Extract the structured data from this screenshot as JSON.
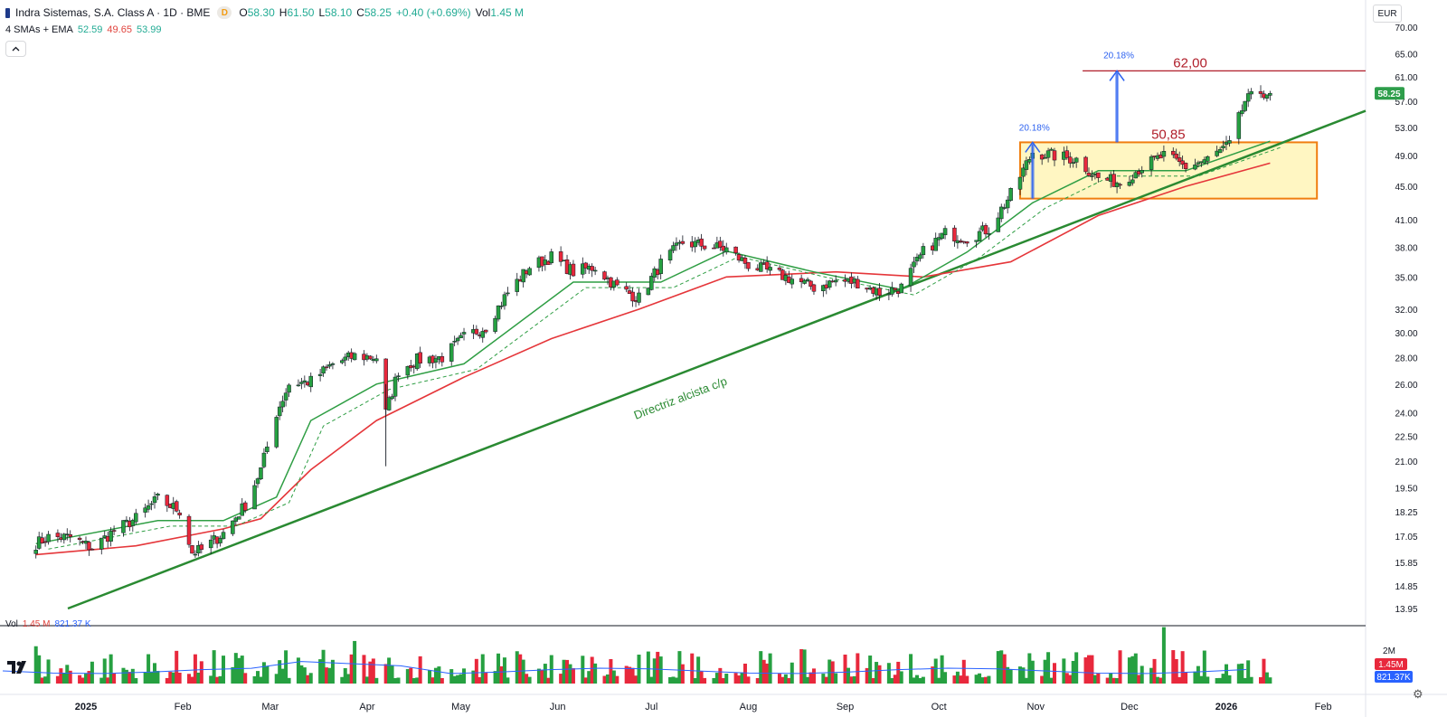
{
  "header": {
    "title": "Indra Sistemas, S.A. Class A · 1D · BME",
    "badge": "D",
    "ohlc": {
      "o_label": "O",
      "o": "58.30",
      "h_label": "H",
      "h": "61.50",
      "l_label": "L",
      "l": "58.10",
      "c_label": "C",
      "c": "58.25",
      "change": "+0.40 (+0.69%)",
      "vol_label": "Vol",
      "vol": "1.45 M"
    }
  },
  "indicators": {
    "label": "4 SMAs + EMA",
    "v1": "52.59",
    "v2": "49.65",
    "v3": "53.99"
  },
  "collapse_icon": "chevron-up-icon",
  "currency": "EUR",
  "price_scale": [
    "70.00",
    "65.00",
    "61.00",
    "57.00",
    "53.00",
    "49.00",
    "45.00",
    "41.00",
    "38.00",
    "35.00",
    "32.00",
    "30.00",
    "28.00",
    "26.00",
    "24.00",
    "22.50",
    "21.00",
    "19.50",
    "18.25",
    "17.05",
    "15.85",
    "14.85",
    "13.95"
  ],
  "last_price": "58.25",
  "time_axis": [
    "2025",
    "Feb",
    "Mar",
    "Apr",
    "May",
    "Jun",
    "Jul",
    "Aug",
    "Sep",
    "Oct",
    "Nov",
    "Dec",
    "2026",
    "Feb"
  ],
  "annotations": {
    "resistance": "62,00",
    "box_top": "50,85",
    "pct1": "20.18%",
    "pct2": "20.18%",
    "trendline": "Directriz alcista c/p"
  },
  "volume": {
    "label": "Vol",
    "v1": "1.45 M",
    "v2": "821.37 K",
    "scale": "2M",
    "badge1": "1.45M",
    "badge2": "821.37K"
  },
  "colors": {
    "up": "#26a041",
    "down": "#e8283c",
    "sma_red": "#e5363a",
    "sma_green": "#2f9e44",
    "trend": "#2a8a32",
    "box_fill": "#fff6c2",
    "box_border": "#f07e10",
    "resistance": "#b01e2a",
    "arrow": "#2d62f0"
  },
  "chart_data": {
    "type": "candlestick",
    "symbol": "Indra Sistemas, S.A. Class A",
    "interval": "1D",
    "scale": "log",
    "ylim": [
      13.95,
      70.0
    ],
    "series": [
      {
        "name": "price",
        "points": [
          [
            "2024-12-16",
            16.7
          ],
          [
            "2024-12-20",
            17.0
          ],
          [
            "2024-12-27",
            17.0
          ],
          [
            "2025-01-03",
            16.5
          ],
          [
            "2025-01-10",
            17.3
          ],
          [
            "2025-01-17",
            17.9
          ],
          [
            "2025-01-24",
            18.9
          ],
          [
            "2025-01-31",
            18.3
          ],
          [
            "2025-02-04",
            16.3
          ],
          [
            "2025-02-07",
            16.4
          ],
          [
            "2025-02-14",
            17.2
          ],
          [
            "2025-02-21",
            18.6
          ],
          [
            "2025-02-26",
            20.5
          ],
          [
            "2025-03-03",
            24.0
          ],
          [
            "2025-03-07",
            26.0
          ],
          [
            "2025-03-14",
            26.2
          ],
          [
            "2025-03-21",
            27.5
          ],
          [
            "2025-03-28",
            28.1
          ],
          [
            "2025-04-04",
            28.0
          ],
          [
            "2025-04-07",
            24.0
          ],
          [
            "2025-04-11",
            27.0
          ],
          [
            "2025-04-17",
            27.8
          ],
          [
            "2025-04-25",
            28.0
          ],
          [
            "2025-05-02",
            29.6
          ],
          [
            "2025-05-09",
            30.5
          ],
          [
            "2025-05-16",
            33.5
          ],
          [
            "2025-05-23",
            36.0
          ],
          [
            "2025-05-30",
            37.0
          ],
          [
            "2025-06-06",
            35.5
          ],
          [
            "2025-06-13",
            36.0
          ],
          [
            "2025-06-20",
            34.0
          ],
          [
            "2025-06-27",
            33.0
          ],
          [
            "2025-07-04",
            36.3
          ],
          [
            "2025-07-11",
            38.5
          ],
          [
            "2025-07-18",
            38.2
          ],
          [
            "2025-07-25",
            37.8
          ],
          [
            "2025-08-01",
            36.2
          ],
          [
            "2025-08-08",
            35.5
          ],
          [
            "2025-08-15",
            34.8
          ],
          [
            "2025-08-22",
            34.0
          ],
          [
            "2025-08-29",
            34.6
          ],
          [
            "2025-09-05",
            34.5
          ],
          [
            "2025-09-12",
            33.5
          ],
          [
            "2025-09-19",
            34.0
          ],
          [
            "2025-09-26",
            37.5
          ],
          [
            "2025-10-03",
            39.5
          ],
          [
            "2025-10-10",
            39.0
          ],
          [
            "2025-10-17",
            40.0
          ],
          [
            "2025-10-24",
            44.0
          ],
          [
            "2025-10-31",
            49.5
          ],
          [
            "2025-11-07",
            49.0
          ],
          [
            "2025-11-14",
            48.5
          ],
          [
            "2025-11-21",
            46.0
          ],
          [
            "2025-11-28",
            45.5
          ],
          [
            "2025-12-05",
            47.5
          ],
          [
            "2025-12-12",
            49.0
          ],
          [
            "2025-12-19",
            47.5
          ],
          [
            "2025-12-26",
            48.5
          ],
          [
            "2026-01-02",
            50.5
          ],
          [
            "2026-01-07",
            57.0
          ],
          [
            "2026-01-12",
            58.5
          ],
          [
            "2026-01-15",
            58.25
          ]
        ]
      },
      {
        "name": "SMA (red)",
        "points": [
          [
            "2024-12-16",
            16.2
          ],
          [
            "2025-01-17",
            16.6
          ],
          [
            "2025-02-14",
            17.4
          ],
          [
            "2025-02-26",
            17.9
          ],
          [
            "2025-03-14",
            20.5
          ],
          [
            "2025-04-04",
            23.5
          ],
          [
            "2025-05-02",
            26.5
          ],
          [
            "2025-05-30",
            29.5
          ],
          [
            "2025-06-27",
            32.0
          ],
          [
            "2025-07-25",
            35.0
          ],
          [
            "2025-08-29",
            35.5
          ],
          [
            "2025-09-26",
            35.0
          ],
          [
            "2025-10-24",
            36.5
          ],
          [
            "2025-11-21",
            41.5
          ],
          [
            "2025-12-19",
            45.0
          ],
          [
            "2026-01-15",
            48.0
          ]
        ]
      },
      {
        "name": "SMA (green)",
        "points": [
          [
            "2024-12-16",
            16.7
          ],
          [
            "2025-01-24",
            17.8
          ],
          [
            "2025-02-14",
            17.8
          ],
          [
            "2025-03-03",
            19.0
          ],
          [
            "2025-03-14",
            23.5
          ],
          [
            "2025-04-04",
            26.0
          ],
          [
            "2025-05-02",
            27.5
          ],
          [
            "2025-06-06",
            34.5
          ],
          [
            "2025-07-04",
            34.5
          ],
          [
            "2025-07-25",
            37.6
          ],
          [
            "2025-08-22",
            35.5
          ],
          [
            "2025-09-19",
            33.8
          ],
          [
            "2025-10-10",
            37.5
          ],
          [
            "2025-10-31",
            43.0
          ],
          [
            "2025-11-21",
            47.0
          ],
          [
            "2025-12-19",
            47.0
          ],
          [
            "2026-01-15",
            51.0
          ]
        ]
      }
    ],
    "lines": [
      {
        "name": "resistance",
        "value": 62.0
      },
      {
        "name": "box_top",
        "value": 50.85
      },
      {
        "name": "box_bottom",
        "value": 43.5
      }
    ],
    "volume_axis_max": "2M"
  }
}
